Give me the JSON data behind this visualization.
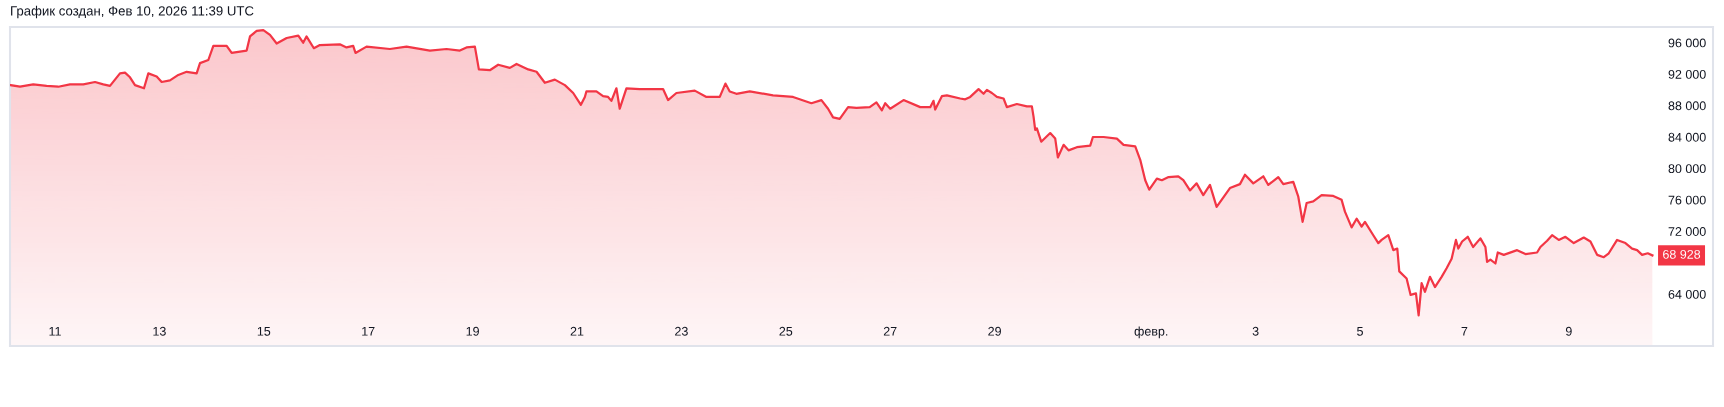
{
  "chart_data": {
    "type": "area",
    "annotations": [
      "График создан, Фев 10, 2026 11:39 UTC",
      {
        "text": "68 928",
        "x": "2026-02-10T14:26",
        "y": 68928
      }
    ],
    "xlim": [
      "2026-01-10T03:19",
      "2026-02-11T18:17"
    ],
    "ylim": [
      57400,
      98000
    ],
    "xticks": [
      {
        "value": "2026-01-11",
        "label": "11"
      },
      {
        "value": "2026-01-13",
        "label": "13"
      },
      {
        "value": "2026-01-15",
        "label": "15"
      },
      {
        "value": "2026-01-17",
        "label": "17"
      },
      {
        "value": "2026-01-19",
        "label": "19"
      },
      {
        "value": "2026-01-21",
        "label": "21"
      },
      {
        "value": "2026-01-23",
        "label": "23"
      },
      {
        "value": "2026-01-25",
        "label": "25"
      },
      {
        "value": "2026-01-27",
        "label": "27"
      },
      {
        "value": "2026-01-29",
        "label": "29"
      },
      {
        "value": "2026-02-01",
        "label": "февр."
      },
      {
        "value": "2026-02-03",
        "label": "3"
      },
      {
        "value": "2026-02-05",
        "label": "5"
      },
      {
        "value": "2026-02-07",
        "label": "7"
      },
      {
        "value": "2026-02-09",
        "label": "9"
      }
    ],
    "yticks": [
      {
        "value": 64000,
        "label": "64 000"
      },
      {
        "value": 72000,
        "label": "72 000"
      },
      {
        "value": 76000,
        "label": "76 000"
      },
      {
        "value": 80000,
        "label": "80 000"
      },
      {
        "value": 84000,
        "label": "84 000"
      },
      {
        "value": 88000,
        "label": "88 000"
      },
      {
        "value": 92000,
        "label": "92 000"
      },
      {
        "value": 96000,
        "label": "96 000"
      }
    ],
    "x": [
      "2026-01-10T03:40",
      "2026-01-10T07:55",
      "2026-01-10T14:00",
      "2026-01-10T20:10",
      "2026-01-11T01:32",
      "2026-01-11T06:54",
      "2026-01-11T13:02",
      "2026-01-11T18:24",
      "2026-01-11T22:13",
      "2026-01-12T01:17",
      "2026-01-12T05:53",
      "2026-01-12T08:11",
      "2026-01-12T10:29",
      "2026-01-12T12:47",
      "2026-01-12T16:55",
      "2026-01-12T18:55",
      "2026-01-12T22:45",
      "2026-01-13T01:03",
      "2026-01-13T04:52",
      "2026-01-13T08:42",
      "2026-01-13T12:32",
      "2026-01-13T17:08",
      "2026-01-13T18:40",
      "2026-01-13T22:30",
      "2026-01-14T00:48",
      "2026-01-14T06:56",
      "2026-01-14T09:14",
      "2026-01-14T16:07",
      "2026-01-14T17:39",
      "2026-01-14T20:43",
      "2026-01-14T23:47",
      "2026-01-15T02:51",
      "2026-01-15T05:55",
      "2026-01-15T10:31",
      "2026-01-15T15:52",
      "2026-01-15T18:06",
      "2026-01-15T19:38",
      "2026-01-15T23:01",
      "2026-01-16T01:47",
      "2026-01-16T10:58",
      "2026-01-16T14:02",
      "2026-01-16T17:06",
      "2026-01-16T18:10",
      "2026-01-16T23:14",
      "2026-01-17T09:58",
      "2026-01-17T17:38",
      "2026-01-18T04:22",
      "2026-01-18T12:01",
      "2026-01-18T18:08",
      "2026-01-18T21:12",
      "2026-01-19T01:03",
      "2026-01-19T02:53",
      "2026-01-19T07:56",
      "2026-01-19T11:46",
      "2026-01-19T17:08",
      "2026-01-19T20:12",
      "2026-01-20T01:34",
      "2026-01-20T05:24",
      "2026-01-20T09:13",
      "2026-01-20T13:49",
      "2026-01-20T18:26",
      "2026-01-20T22:15",
      "2026-01-21T01:47",
      "2026-01-21T03:37",
      "2026-01-21T04:19",
      "2026-01-21T08:55",
      "2026-01-21T11:59",
      "2026-01-21T14:17",
      "2026-01-21T15:49",
      "2026-01-21T18:07",
      "2026-01-21T19:39",
      "2026-01-21T22:43",
      "2026-01-22T04:50",
      "2026-01-22T15:34",
      "2026-01-22T17:52",
      "2026-01-22T21:42",
      "2026-01-23T06:08",
      "2026-01-23T11:30",
      "2026-01-23T17:38",
      "2026-01-23T20:14",
      "2026-01-23T22:13",
      "2026-01-24T01:17",
      "2026-01-24T07:25",
      "2026-01-24T18:08",
      "2026-01-25T03:20",
      "2026-01-25T11:46",
      "2026-01-25T16:22",
      "2026-01-25T19:26",
      "2026-01-25T21:44",
      "2026-01-26T00:48",
      "2026-01-26T04:38",
      "2026-01-26T08:28",
      "2026-01-26T14:35",
      "2026-01-26T17:39",
      "2026-01-26T20:10",
      "2026-01-26T21:42",
      "2026-01-27T00:00",
      "2026-01-27T06:08",
      "2026-01-27T13:48",
      "2026-01-27T18:24",
      "2026-01-27T19:55",
      "2026-01-27T20:41",
      "2026-01-27T23:45",
      "2026-01-28T02:03",
      "2026-01-28T08:11",
      "2026-01-28T10:29",
      "2026-01-28T12:47",
      "2026-01-28T16:37",
      "2026-01-28T18:55",
      "2026-01-28T20:27",
      "2026-01-28T22:45",
      "2026-01-29T01:03",
      "2026-01-29T04:07",
      "2026-01-29T05:38",
      "2026-01-29T10:14",
      "2026-01-29T14:50",
      "2026-01-29T17:08",
      "2026-01-29T17:54",
      "2026-01-29T18:40",
      "2026-01-29T19:26",
      "2026-01-29T21:26",
      "2026-01-30T01:34",
      "2026-01-30T03:52",
      "2026-01-30T05:05",
      "2026-01-30T07:42",
      "2026-01-30T09:59",
      "2026-01-30T13:49",
      "2026-01-30T19:57",
      "2026-01-30T21:11",
      "2026-01-31T02:05",
      "2026-01-31T08:13",
      "2026-01-31T11:17",
      "2026-01-31T16:39",
      "2026-01-31T18:57",
      "2026-01-31T21:15",
      "2026-01-31T23:05",
      "2026-02-01T02:36",
      "2026-02-01T04:54",
      "2026-02-01T07:58",
      "2026-02-01T12:27",
      "2026-02-01T14:46",
      "2026-02-01T17:49",
      "2026-02-01T20:52",
      "2026-02-01T23:56",
      "2026-02-02T03:00",
      "2026-02-02T06:04",
      "2026-02-02T08:22",
      "2026-02-02T12:12",
      "2026-02-02T16:48",
      "2026-02-02T19:06",
      "2026-02-02T22:56",
      "2026-02-03T03:32",
      "2026-02-03T05:49",
      "2026-02-03T10:25",
      "2026-02-03T12:43",
      "2026-02-03T17:19",
      "2026-02-03T19:37",
      "2026-02-03T21:36",
      "2026-02-03T23:27",
      "2026-02-04T02:31",
      "2026-02-04T06:21",
      "2026-02-04T11:42",
      "2026-02-04T15:32",
      "2026-02-04T17:04",
      "2026-02-04T20:08",
      "2026-02-04T22:26",
      "2026-02-05T00:44",
      "2026-02-05T02:16",
      "2026-02-05T06:06",
      "2026-02-05T08:24",
      "2026-02-05T09:56",
      "2026-02-05T13:00",
      "2026-02-05T15:18",
      "2026-02-05T17:08",
      "2026-02-05T18:03",
      "2026-02-05T21:25",
      "2026-02-05T23:16",
      "2026-02-06T01:43",
      "2026-02-06T02:57",
      "2026-02-06T04:19",
      "2026-02-06T05:51",
      "2026-02-06T08:09",
      "2026-02-06T10:27",
      "2026-02-06T13:31",
      "2026-02-06T15:49",
      "2026-02-06T18:07",
      "2026-02-06T20:06",
      "2026-02-06T21:11",
      "2026-02-06T22:56",
      "2026-02-07T01:32",
      "2026-02-07T03:59",
      "2026-02-07T07:21",
      "2026-02-07T09:39",
      "2026-02-07T10:25",
      "2026-02-07T11:57",
      "2026-02-07T14:15",
      "2026-02-07T15:20",
      "2026-02-07T18:05",
      "2026-02-08T00:13",
      "2026-02-08T04:03",
      "2026-02-08T09:24",
      "2026-02-08T10:56",
      "2026-02-08T14:01",
      "2026-02-08T16:18",
      "2026-02-08T19:22",
      "2026-02-08T22:26",
      "2026-02-09T02:16",
      "2026-02-09T06:52",
      "2026-02-09T09:56",
      "2026-02-09T13:00",
      "2026-02-09T16:04",
      "2026-02-09T18:22",
      "2026-02-09T22:11",
      "2026-02-10T02:01",
      "2026-02-10T05:05",
      "2026-02-10T07:23",
      "2026-02-10T09:41",
      "2026-02-10T12:17",
      "2026-02-10T14:26"
    ],
    "series": [
      {
        "color": "#f23645",
        "values": [
          90600,
          90400,
          90700,
          90500,
          90400,
          90700,
          90700,
          91000,
          90700,
          90500,
          92100,
          92200,
          91600,
          90600,
          90200,
          92100,
          91700,
          91000,
          91200,
          91900,
          92300,
          92100,
          93400,
          93800,
          95600,
          95600,
          94700,
          95000,
          96800,
          97500,
          97600,
          97000,
          95900,
          96600,
          96900,
          96000,
          96800,
          95300,
          95700,
          95800,
          95400,
          95600,
          94700,
          95500,
          95200,
          95500,
          95000,
          95200,
          95000,
          95400,
          95500,
          92600,
          92500,
          93200,
          92800,
          93300,
          92600,
          92300,
          90900,
          91300,
          90600,
          89600,
          88100,
          89100,
          89800,
          89800,
          89200,
          89100,
          88600,
          90200,
          87600,
          90200,
          90100,
          90100,
          88700,
          89600,
          89900,
          89100,
          89100,
          90800,
          89800,
          89500,
          89800,
          89300,
          89100,
          88300,
          88700,
          87600,
          86500,
          86300,
          87800,
          87700,
          87800,
          88400,
          87400,
          88300,
          87600,
          88700,
          87800,
          87800,
          88600,
          87500,
          89200,
          89300,
          88900,
          88800,
          89100,
          90100,
          89500,
          90000,
          89600,
          89100,
          88900,
          87800,
          88200,
          87900,
          87900,
          86600,
          84900,
          85100,
          83400,
          84500,
          83800,
          81400,
          83000,
          82300,
          82700,
          82900,
          84000,
          84000,
          83800,
          83000,
          82800,
          81100,
          78500,
          77300,
          78700,
          78500,
          78900,
          79000,
          78500,
          77200,
          78100,
          76600,
          77900,
          75100,
          76000,
          77500,
          78000,
          79200,
          78100,
          79000,
          77900,
          78900,
          78000,
          78300,
          76400,
          73200,
          75600,
          75800,
          76600,
          76500,
          76000,
          74500,
          72500,
          73600,
          72600,
          73200,
          71500,
          70500,
          70900,
          71500,
          69600,
          69800,
          66900,
          66000,
          63900,
          64100,
          61300,
          65400,
          64300,
          66200,
          64900,
          66200,
          67300,
          68500,
          70900,
          69800,
          70700,
          71300,
          70000,
          71100,
          70000,
          68100,
          68400,
          67900,
          69300,
          69000,
          69600,
          69100,
          69300,
          70000,
          70800,
          71500,
          70900,
          71300,
          70500,
          71200,
          70700,
          69000,
          68700,
          69200,
          70900,
          70500,
          69800,
          69600,
          69000,
          69200,
          68928
        ]
      }
    ]
  }
}
